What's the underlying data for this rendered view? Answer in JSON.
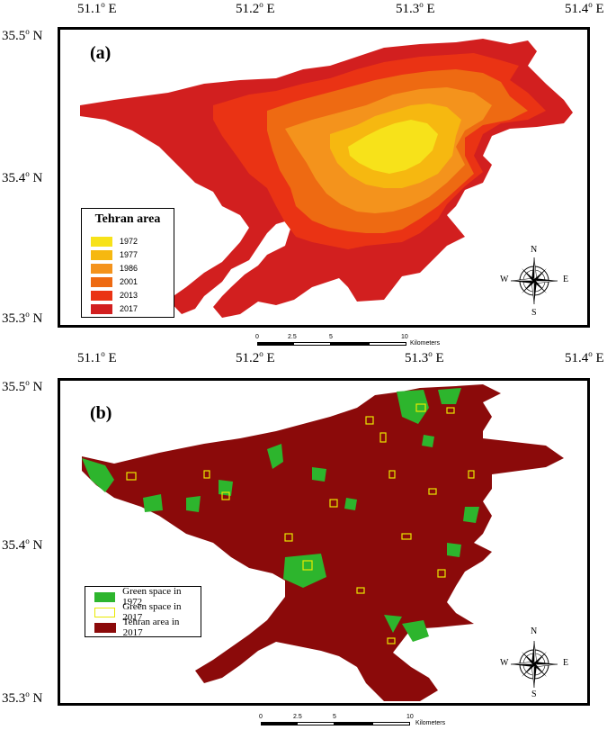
{
  "panel_a": {
    "letter": "(a)",
    "lon_labels": [
      "51.1o E",
      "51.2o E",
      "51.3o E",
      "51.4o E"
    ],
    "lat_labels": [
      "35.5o N",
      "35.4o N",
      "35.3o N"
    ],
    "legend_title": "Tehran area",
    "legend_items": [
      {
        "label": "1972",
        "color": "#f7e21a"
      },
      {
        "label": "1977",
        "color": "#f6b810"
      },
      {
        "label": "1986",
        "color": "#f4931c"
      },
      {
        "label": "2001",
        "color": "#ee6a12"
      },
      {
        "label": "2013",
        "color": "#ea3314"
      },
      {
        "label": "2017",
        "color": "#d21f1f"
      }
    ],
    "compass": {
      "n": "N",
      "s": "S",
      "e": "E",
      "w": "W"
    },
    "scale": {
      "ticks": [
        "0",
        "2.5",
        "5",
        "10"
      ],
      "unit": "Kilometers"
    }
  },
  "panel_b": {
    "letter": "(b)",
    "lon_labels": [
      "51.1o E",
      "51.2o E",
      "51.3o E",
      "51.4o E"
    ],
    "lat_labels": [
      "35.5o N",
      "35.4o N",
      "35.3o N"
    ],
    "legend_items": [
      {
        "label": "Green space in 1972",
        "color": "#2db52d"
      },
      {
        "label": "Green space in 2017",
        "color": "#ffffff",
        "outline": "#e8e800"
      },
      {
        "label": "Tehran area in 2017",
        "color": "#8b0a0a"
      }
    ],
    "compass": {
      "n": "N",
      "s": "S",
      "e": "E",
      "w": "W"
    },
    "scale": {
      "ticks": [
        "0",
        "2.5",
        "5",
        "10"
      ],
      "unit": "Kilometers"
    }
  }
}
